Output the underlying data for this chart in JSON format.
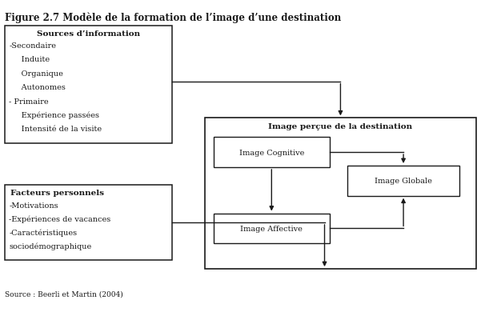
{
  "title": "Figure 2.7 Modèle de la formation de l’image d’une destination",
  "source_box_title": "Sources d’information",
  "source_box_lines": [
    "-Secondaire",
    "     Induite",
    "     Organique",
    "     Autonomes",
    "- Primaire",
    "     Expérience passées",
    "     Intensité de la visite"
  ],
  "factor_box_title": "Facteurs personnels",
  "factor_box_lines": [
    "-Motivations",
    "-Expériences de vacances",
    "-Caractéristiques",
    "sociodémographique"
  ],
  "image_percue_label": "Image perçue de la destination",
  "cognitive_label": "Image Cognitive",
  "affective_label": "Image Affective",
  "globale_label": "Image Globale",
  "source_label": "Source : Beerli et Martin (2004)",
  "bg_color": "#ffffff",
  "box_edge": "#1a1a1a",
  "text_color": "#1a1a1a"
}
